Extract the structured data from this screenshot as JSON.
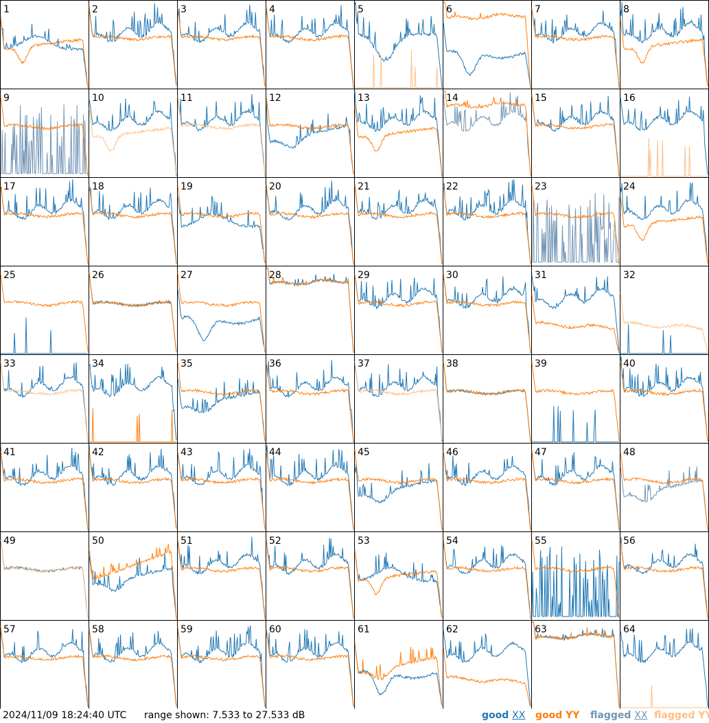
{
  "chart_data": {
    "type": "line",
    "layout": "8x8 grid of small multiples",
    "panel_labels": [
      "1",
      "2",
      "3",
      "4",
      "5",
      "6",
      "7",
      "8",
      "9",
      "10",
      "11",
      "12",
      "13",
      "14",
      "15",
      "16",
      "17",
      "18",
      "19",
      "20",
      "21",
      "22",
      "23",
      "24",
      "25",
      "26",
      "27",
      "28",
      "29",
      "30",
      "31",
      "32",
      "33",
      "34",
      "35",
      "36",
      "37",
      "38",
      "39",
      "40",
      "41",
      "42",
      "43",
      "44",
      "45",
      "46",
      "47",
      "48",
      "49",
      "50",
      "51",
      "52",
      "53",
      "54",
      "55",
      "56",
      "57",
      "58",
      "59",
      "60",
      "61",
      "62",
      "63",
      "64"
    ],
    "ylim": [
      7.533,
      27.533
    ],
    "y_units": "dB",
    "series_colors": {
      "good_xx": "#1f77b4",
      "good_yy": "#ff7f0e",
      "flagged_xx": "#7094b5",
      "flagged_yy": "#ffbf87"
    },
    "panels": [
      {
        "xx": "good",
        "yy": "good",
        "xs": "bump",
        "ys": "dip"
      },
      {
        "xx": "good",
        "yy": "good",
        "xs": "wavy",
        "ys": "flat"
      },
      {
        "xx": "good",
        "yy": "good",
        "xs": "wavy",
        "ys": "flat"
      },
      {
        "xx": "good",
        "yy": "good",
        "xs": "wavy",
        "ys": "flat"
      },
      {
        "xx": "good",
        "yy": "flagged",
        "xs": "bigdip",
        "ys": "sparse"
      },
      {
        "xx": "good",
        "yy": "good",
        "xs": "deepdip",
        "ys": "flathigh"
      },
      {
        "xx": "good",
        "yy": "good",
        "xs": "wavy",
        "ys": "flat"
      },
      {
        "xx": "good",
        "yy": "good",
        "xs": "wavy",
        "ys": "dip"
      },
      {
        "xx": "flagged",
        "yy": "good",
        "xs": "spiky",
        "ys": "flat"
      },
      {
        "xx": "good",
        "yy": "flagged",
        "xs": "wavy",
        "ys": "dip"
      },
      {
        "xx": "good",
        "yy": "flagged",
        "xs": "wavy",
        "ys": "flat"
      },
      {
        "xx": "good",
        "yy": "good",
        "xs": "lowdip",
        "ys": "flat"
      },
      {
        "xx": "good",
        "yy": "good",
        "xs": "wavy",
        "ys": "dip"
      },
      {
        "xx": "flagged",
        "yy": "good",
        "xs": "wavy",
        "ys": "flathigh"
      },
      {
        "xx": "good",
        "yy": "good",
        "xs": "wavy",
        "ys": "flat"
      },
      {
        "xx": "good",
        "yy": "flagged",
        "xs": "wavy",
        "ys": "sparse"
      },
      {
        "xx": "good",
        "yy": "good",
        "xs": "wavy",
        "ys": "flat"
      },
      {
        "xx": "good",
        "yy": "good",
        "xs": "wavy",
        "ys": "flat"
      },
      {
        "xx": "good",
        "yy": "good",
        "xs": "bump",
        "ys": "flat"
      },
      {
        "xx": "good",
        "yy": "good",
        "xs": "wavy",
        "ys": "flat"
      },
      {
        "xx": "good",
        "yy": "good",
        "xs": "wavy",
        "ys": "flat"
      },
      {
        "xx": "good",
        "yy": "good",
        "xs": "wavy",
        "ys": "flat"
      },
      {
        "xx": "flagged",
        "yy": "good",
        "xs": "spiky",
        "ys": "flat"
      },
      {
        "xx": "good",
        "yy": "good",
        "xs": "wavy",
        "ys": "dip"
      },
      {
        "xx": "good",
        "yy": "good",
        "xs": "sparse",
        "ys": "flat"
      },
      {
        "xx": "good",
        "yy": "good",
        "xs": "flat",
        "ys": "flat"
      },
      {
        "xx": "good",
        "yy": "good",
        "xs": "deepdip",
        "ys": "flat"
      },
      {
        "xx": "good",
        "yy": "good",
        "xs": "flathigh",
        "ys": "flathigh"
      },
      {
        "xx": "good",
        "yy": "good",
        "xs": "wavy",
        "ys": "flat"
      },
      {
        "xx": "good",
        "yy": "good",
        "xs": "wavy",
        "ys": "flat"
      },
      {
        "xx": "good",
        "yy": "good",
        "xs": "wavy",
        "ys": "low"
      },
      {
        "xx": "good",
        "yy": "flagged",
        "xs": "sparse",
        "ys": "low"
      },
      {
        "xx": "good",
        "yy": "flagged",
        "xs": "wavy",
        "ys": "flat"
      },
      {
        "xx": "good",
        "yy": "good",
        "xs": "wavy",
        "ys": "sparse"
      },
      {
        "xx": "good",
        "yy": "good",
        "xs": "lowdip",
        "ys": "flat"
      },
      {
        "xx": "good",
        "yy": "good",
        "xs": "wavy",
        "ys": "flat"
      },
      {
        "xx": "good",
        "yy": "flagged",
        "xs": "wavy",
        "ys": "flat"
      },
      {
        "xx": "good",
        "yy": "good",
        "xs": "flat",
        "ys": "flat"
      },
      {
        "xx": "good",
        "yy": "good",
        "xs": "sparse",
        "ys": "flat"
      },
      {
        "xx": "good",
        "yy": "good",
        "xs": "wavy",
        "ys": "flat"
      },
      {
        "xx": "good",
        "yy": "good",
        "xs": "wavy",
        "ys": "flat"
      },
      {
        "xx": "good",
        "yy": "good",
        "xs": "wavy",
        "ys": "flat"
      },
      {
        "xx": "good",
        "yy": "good",
        "xs": "wavy",
        "ys": "flat"
      },
      {
        "xx": "good",
        "yy": "good",
        "xs": "wavy",
        "ys": "flat"
      },
      {
        "xx": "good",
        "yy": "good",
        "xs": "lowdip",
        "ys": "flat"
      },
      {
        "xx": "good",
        "yy": "good",
        "xs": "wavy",
        "ys": "flat"
      },
      {
        "xx": "good",
        "yy": "good",
        "xs": "wavy",
        "ys": "flat"
      },
      {
        "xx": "flagged",
        "yy": "good",
        "xs": "lowdip",
        "ys": "flat"
      },
      {
        "xx": "good",
        "yy": "flagged",
        "xs": "flat",
        "ys": "flat"
      },
      {
        "xx": "good",
        "yy": "good",
        "xs": "lowdip",
        "ys": "rising"
      },
      {
        "xx": "good",
        "yy": "good",
        "xs": "wavy",
        "ys": "flat"
      },
      {
        "xx": "good",
        "yy": "good",
        "xs": "wavy",
        "ys": "flat"
      },
      {
        "xx": "good",
        "yy": "good",
        "xs": "bump",
        "ys": "dip"
      },
      {
        "xx": "good",
        "yy": "good",
        "xs": "wavy",
        "ys": "flat"
      },
      {
        "xx": "good",
        "yy": "good",
        "xs": "spiky",
        "ys": "flat"
      },
      {
        "xx": "good",
        "yy": "good",
        "xs": "wavy",
        "ys": "flat"
      },
      {
        "xx": "good",
        "yy": "good",
        "xs": "wavy",
        "ys": "flat"
      },
      {
        "xx": "good",
        "yy": "good",
        "xs": "wavy",
        "ys": "flat"
      },
      {
        "xx": "good",
        "yy": "good",
        "xs": "wavy",
        "ys": "flat"
      },
      {
        "xx": "good",
        "yy": "good",
        "xs": "wavy",
        "ys": "flat"
      },
      {
        "xx": "good",
        "yy": "good",
        "xs": "deepdip",
        "ys": "lowdip"
      },
      {
        "xx": "good",
        "yy": "good",
        "xs": "wavy",
        "ys": "low"
      },
      {
        "xx": "good",
        "yy": "good",
        "xs": "flathigh",
        "ys": "flathigh"
      },
      {
        "xx": "good",
        "yy": "flagged",
        "xs": "wavy",
        "ys": "sparse"
      }
    ]
  },
  "footer": {
    "timestamp": "2024/11/09 18:24:40 UTC",
    "range_text": "range shown: 7.533 to 27.533 dB"
  },
  "legend": {
    "good_word": "good",
    "flagged_word": "flagged",
    "xx": "XX",
    "yy": "YY"
  }
}
